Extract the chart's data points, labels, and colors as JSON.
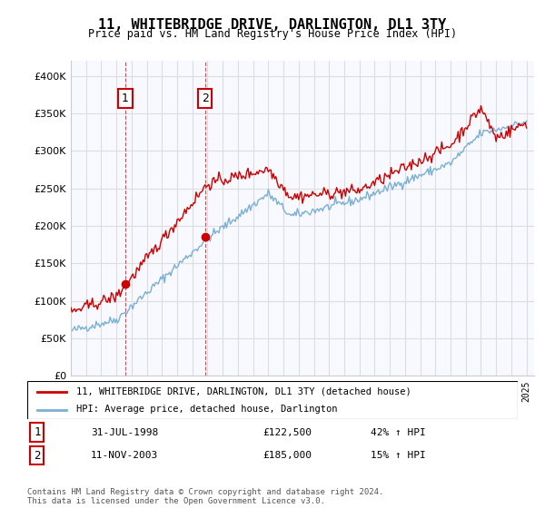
{
  "title": "11, WHITEBRIDGE DRIVE, DARLINGTON, DL1 3TY",
  "subtitle": "Price paid vs. HM Land Registry's House Price Index (HPI)",
  "ylim": [
    0,
    420000
  ],
  "yticks": [
    0,
    50000,
    100000,
    150000,
    200000,
    250000,
    300000,
    350000,
    400000
  ],
  "hpi_color": "#7ab0d4",
  "price_color": "#cc0000",
  "background_color": "#ffffff",
  "grid_color": "#dddddd",
  "legend_entries": [
    "11, WHITEBRIDGE DRIVE, DARLINGTON, DL1 3TY (detached house)",
    "HPI: Average price, detached house, Darlington"
  ],
  "sale1_date": "31-JUL-1998",
  "sale1_price": 122500,
  "sale1_hpi": "42% ↑ HPI",
  "sale2_date": "11-NOV-2003",
  "sale2_price": 185000,
  "sale2_hpi": "15% ↑ HPI",
  "footnote": "Contains HM Land Registry data © Crown copyright and database right 2024.\nThis data is licensed under the Open Government Licence v3.0.",
  "sale1_label": "1",
  "sale2_label": "2",
  "sale1_marker_price": 122500,
  "sale2_marker_price": 185000
}
